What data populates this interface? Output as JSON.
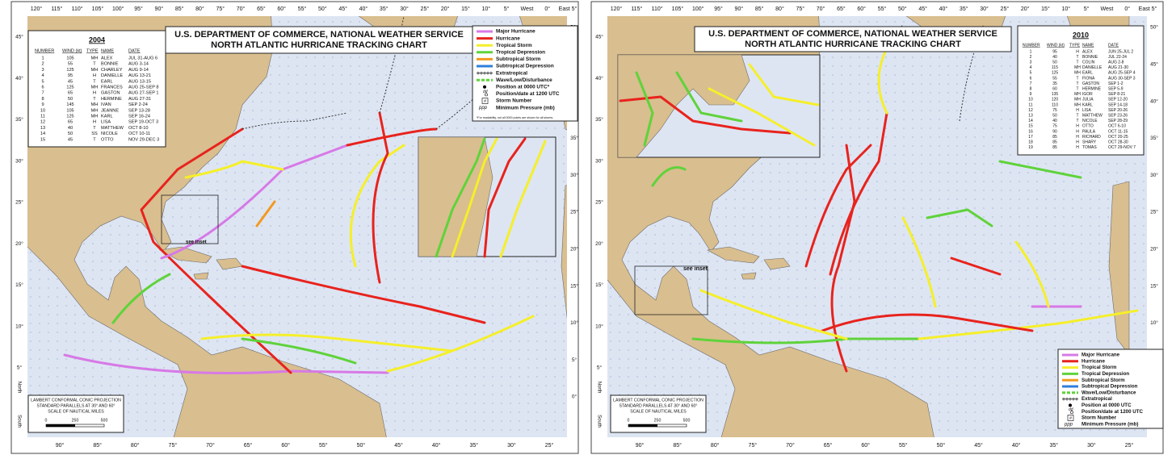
{
  "graticule": {
    "top": [
      "120°",
      "115°",
      "110°",
      "105°",
      "100°",
      "95°",
      "90°",
      "85°",
      "80°",
      "75°",
      "70°",
      "65°",
      "60°",
      "55°",
      "50°",
      "45°",
      "40°",
      "35°",
      "30°",
      "25°",
      "20°",
      "15°",
      "10°",
      "5°",
      "West",
      "0°",
      "East 5°"
    ],
    "bottom": [
      "90°",
      "85°",
      "80°",
      "75°",
      "70°",
      "65°",
      "60°",
      "55°",
      "50°",
      "45°",
      "40°",
      "35°",
      "30°",
      "25°"
    ],
    "left": [
      "45°",
      "40°",
      "35°",
      "30°",
      "25°",
      "20°",
      "15°",
      "10°",
      "5°"
    ],
    "right": [
      "50°",
      "45°",
      "40°",
      "35°",
      "30°",
      "25°",
      "20°",
      "15°",
      "10°",
      "5°",
      "0°"
    ],
    "hemispheres": [
      "North",
      "South"
    ]
  },
  "projection": {
    "lines": [
      "LAMBERT CONFORMAL CONIC PROJECTION",
      "STANDARD PARALLELS AT 30° AND 60°",
      "SCALE OF NAUTICAL MILES"
    ],
    "scale": [
      "0",
      "250",
      "500"
    ]
  },
  "maps": [
    {
      "title_lines": [
        "U.S. DEPARTMENT OF COMMERCE, NATIONAL WEATHER SERVICE",
        "NORTH ATLANTIC HURRICANE TRACKING CHART"
      ],
      "year": "2004",
      "inset_label": "see inset",
      "table": {
        "headers": [
          "NUMBER",
          "WIND (kt)",
          "TYPE",
          "NAME",
          "DATE"
        ],
        "rows": [
          [
            1,
            105,
            "MH",
            "ALEX",
            "JUL 31-AUG 6"
          ],
          [
            2,
            55,
            "T",
            "BONNIE",
            "AUG 3-14"
          ],
          [
            3,
            125,
            "MH",
            "CHARLEY",
            "AUG 9-14"
          ],
          [
            4,
            95,
            "H",
            "DANIELLE",
            "AUG 13-21"
          ],
          [
            5,
            45,
            "T",
            "EARL",
            "AUG 13-15"
          ],
          [
            6,
            125,
            "MH",
            "FRANCES",
            "AUG 25-SEP 8"
          ],
          [
            7,
            65,
            "H",
            "GASTON",
            "AUG 27-SEP 1"
          ],
          [
            8,
            50,
            "T",
            "HERMINE",
            "AUG 27-31"
          ],
          [
            9,
            145,
            "MH",
            "IVAN",
            "SEP 2-24"
          ],
          [
            10,
            105,
            "MH",
            "JEANNE",
            "SEP 13-28"
          ],
          [
            11,
            125,
            "MH",
            "KARL",
            "SEP 16-24"
          ],
          [
            12,
            65,
            "H",
            "LISA",
            "SEP 19-OCT 3"
          ],
          [
            13,
            40,
            "T",
            "MATTHEW",
            "OCT 8-10"
          ],
          [
            14,
            50,
            "SS",
            "NICOLE",
            "OCT 10-11"
          ],
          [
            15,
            45,
            "T",
            "OTTO",
            "NOV 29-DEC 3"
          ]
        ]
      },
      "legend": [
        {
          "label": "Major Hurricane",
          "color": "#d779e6"
        },
        {
          "label": "Hurricane",
          "color": "#e8231d"
        },
        {
          "label": "Tropical Storm",
          "color": "#f5ef2a"
        },
        {
          "label": "Tropical Depression",
          "color": "#5fd33a"
        },
        {
          "label": "Subtropical Storm",
          "color": "#f39a1e"
        },
        {
          "label": "Subtropical Depression",
          "color": "#2f7fd8"
        },
        {
          "label": "Extratropical",
          "color": "#333333",
          "symbol": "cross"
        },
        {
          "label": "Wave/Low/Disturbance",
          "color": "#5fd33a",
          "symbol": "dash"
        },
        {
          "label": "Position at 0000 UTC*",
          "symbol": "dot"
        },
        {
          "label": "Position/date at 1200 UTC",
          "symbol": "ring",
          "marker": "dd"
        },
        {
          "label": "Storm Number",
          "symbol": "box",
          "marker": "#"
        },
        {
          "label": "Minimum Pressure (mb)",
          "symbol": "text",
          "marker": "ppp"
        }
      ],
      "legend_note": "*For readability, not all 0000 points are shown for all storms."
    },
    {
      "title_lines": [
        "U.S. DEPARTMENT OF COMMERCE, NATIONAL WEATHER SERVICE",
        "NORTH ATLANTIC HURRICANE TRACKING CHART"
      ],
      "year": "2010",
      "inset_label": "see inset",
      "table": {
        "headers": [
          "NUMBER",
          "WIND (kt)",
          "TYPE",
          "NAME",
          "DATE"
        ],
        "rows": [
          [
            1,
            95,
            "H",
            "ALEX",
            "JUN 25-JUL 2"
          ],
          [
            2,
            40,
            "T",
            "BONNIE",
            "JUL 22-24"
          ],
          [
            3,
            50,
            "T",
            "COLIN",
            "AUG 2-8"
          ],
          [
            4,
            115,
            "MH",
            "DANIELLE",
            "AUG 21-30"
          ],
          [
            5,
            125,
            "MH",
            "EARL",
            "AUG 25-SEP 4"
          ],
          [
            6,
            55,
            "T",
            "FIONA",
            "AUG 30-SEP 3"
          ],
          [
            7,
            35,
            "T",
            "GASTON",
            "SEP 1-2"
          ],
          [
            8,
            60,
            "T",
            "HERMINE",
            "SEP 5-9"
          ],
          [
            9,
            135,
            "MH",
            "IGOR",
            "SEP 8-21"
          ],
          [
            10,
            120,
            "MH",
            "JULIA",
            "SEP 12-20"
          ],
          [
            11,
            110,
            "MH",
            "KARL",
            "SEP 14-18"
          ],
          [
            12,
            75,
            "H",
            "LISA",
            "SEP 20-26"
          ],
          [
            13,
            50,
            "T",
            "MATTHEW",
            "SEP 23-26"
          ],
          [
            14,
            40,
            "T",
            "NICOLE",
            "SEP 28-29"
          ],
          [
            15,
            75,
            "H",
            "OTTO",
            "OCT 6-10"
          ],
          [
            16,
            90,
            "H",
            "PAULA",
            "OCT 11-15"
          ],
          [
            17,
            85,
            "H",
            "RICHARD",
            "OCT 20-25"
          ],
          [
            18,
            85,
            "H",
            "SHARY",
            "OCT 28-30"
          ],
          [
            19,
            85,
            "H",
            "TOMAS",
            "OCT 29-NOV 7"
          ]
        ]
      },
      "legend": [
        {
          "label": "Major Hurricane",
          "color": "#d779e6"
        },
        {
          "label": "Hurricane",
          "color": "#e8231d"
        },
        {
          "label": "Tropical Storm",
          "color": "#f5ef2a"
        },
        {
          "label": "Tropical Depression",
          "color": "#5fd33a"
        },
        {
          "label": "Subtropical Storm",
          "color": "#f39a1e"
        },
        {
          "label": "Subtropical Depression",
          "color": "#2f7fd8"
        },
        {
          "label": "Wave/Low/Disturbance",
          "color": "#5fd33a",
          "symbol": "dash"
        },
        {
          "label": "Extratropical",
          "color": "#333333",
          "symbol": "cross"
        },
        {
          "label": "Position at 0000 UTC",
          "symbol": "dot"
        },
        {
          "label": "Position/date at 1200 UTC",
          "symbol": "ring",
          "marker": "dd"
        },
        {
          "label": "Storm Number",
          "symbol": "box",
          "marker": "#"
        },
        {
          "label": "Minimum Pressure (mb)",
          "symbol": "text",
          "marker": "ppp"
        }
      ]
    }
  ]
}
